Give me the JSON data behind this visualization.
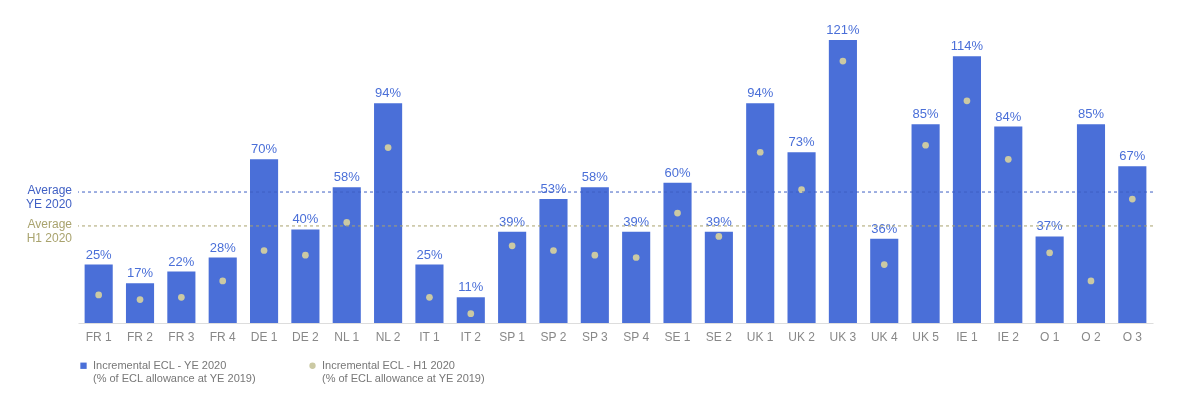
{
  "chart_data": {
    "type": "bar",
    "categories": [
      "FR 1",
      "FR 2",
      "FR 3",
      "FR 4",
      "DE 1",
      "DE 2",
      "NL 1",
      "NL 2",
      "IT 1",
      "IT 2",
      "SP 1",
      "SP 2",
      "SP 3",
      "SP 4",
      "SE 1",
      "SE 2",
      "UK 1",
      "UK 2",
      "UK 3",
      "UK 4",
      "UK 5",
      "IE 1",
      "IE 2",
      "O 1",
      "O 2",
      "O 3"
    ],
    "series": [
      {
        "name": "Incremental ECL - YE 2020\n(% of ECL allowance at YE 2019)",
        "color": "#4a6fd8",
        "values": [
          25,
          17,
          22,
          28,
          70,
          40,
          58,
          94,
          25,
          11,
          39,
          53,
          58,
          39,
          60,
          39,
          94,
          73,
          121,
          36,
          85,
          114,
          84,
          37,
          85,
          67
        ],
        "value_labels": [
          "25%",
          "17%",
          "22%",
          "28%",
          "70%",
          "40%",
          "58%",
          "94%",
          "25%",
          "11%",
          "39%",
          "53%",
          "58%",
          "39%",
          "60%",
          "39%",
          "94%",
          "73%",
          "121%",
          "36%",
          "85%",
          "114%",
          "84%",
          "37%",
          "85%",
          "67%"
        ]
      },
      {
        "name": "Incremental ECL - H1 2020\n(% of ECL allowance at YE 2019)",
        "type": "scatter",
        "color": "#cbc9a3",
        "values": [
          12,
          10,
          11,
          18,
          31,
          29,
          43,
          75,
          11,
          4,
          33,
          31,
          29,
          28,
          47,
          37,
          73,
          57,
          112,
          25,
          76,
          95,
          70,
          30,
          18,
          53
        ]
      }
    ],
    "ref_lines": [
      {
        "axis": "y",
        "value": 56,
        "label": "Average\nYE 2020",
        "color": "#3f5fc4",
        "line_style": "dashed"
      },
      {
        "axis": "y",
        "value": 41.5,
        "label": "Average\nH1 2020",
        "color": "#a9a36e",
        "line_style": "dashed"
      }
    ],
    "ylim": [
      0,
      121
    ],
    "tick_labels": "x",
    "legend": "bottom",
    "marker": "circle"
  }
}
